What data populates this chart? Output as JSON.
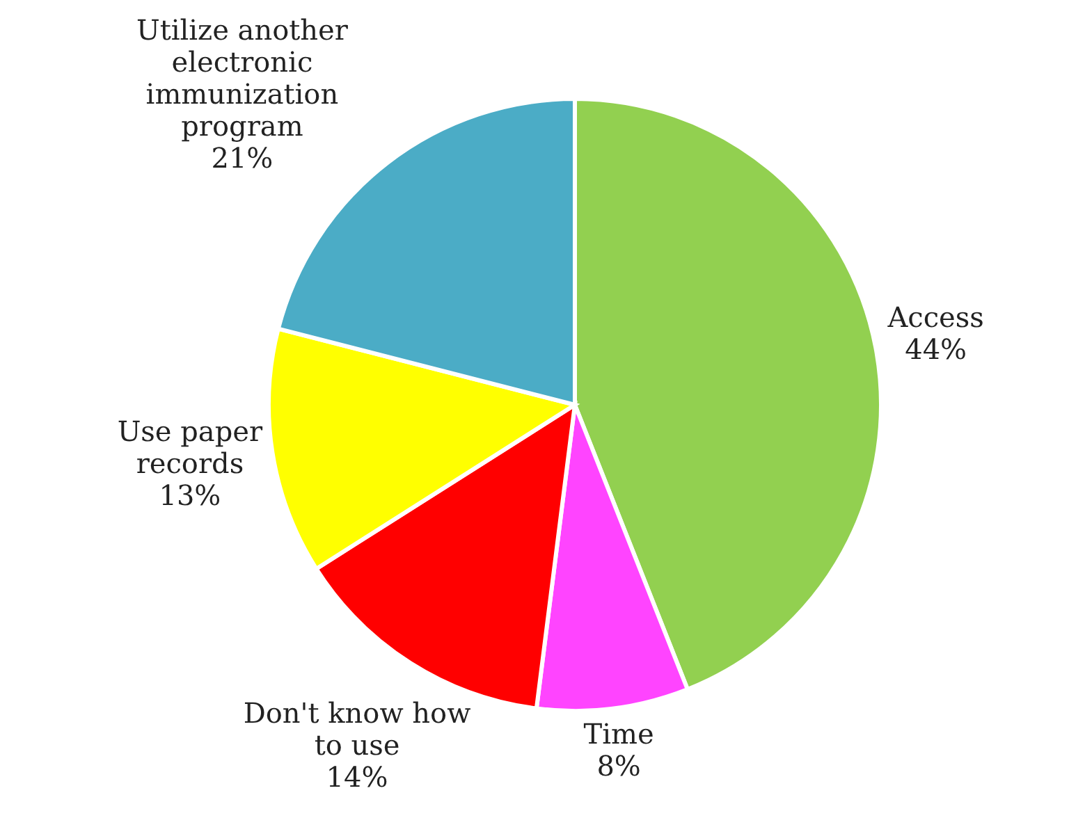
{
  "chart_data": {
    "type": "pie",
    "categories": [
      "Access",
      "Time",
      "Don't know how to use",
      "Use paper records",
      "Utilize another electronic immunization program"
    ],
    "values": [
      44,
      8,
      14,
      13,
      21
    ],
    "colors": [
      "#92d050",
      "#ff44ff",
      "#ff0000",
      "#ffff00",
      "#4bacc6"
    ],
    "value_labels": [
      "44%",
      "8%",
      "14%",
      "13%",
      "21%"
    ],
    "legend": false
  }
}
